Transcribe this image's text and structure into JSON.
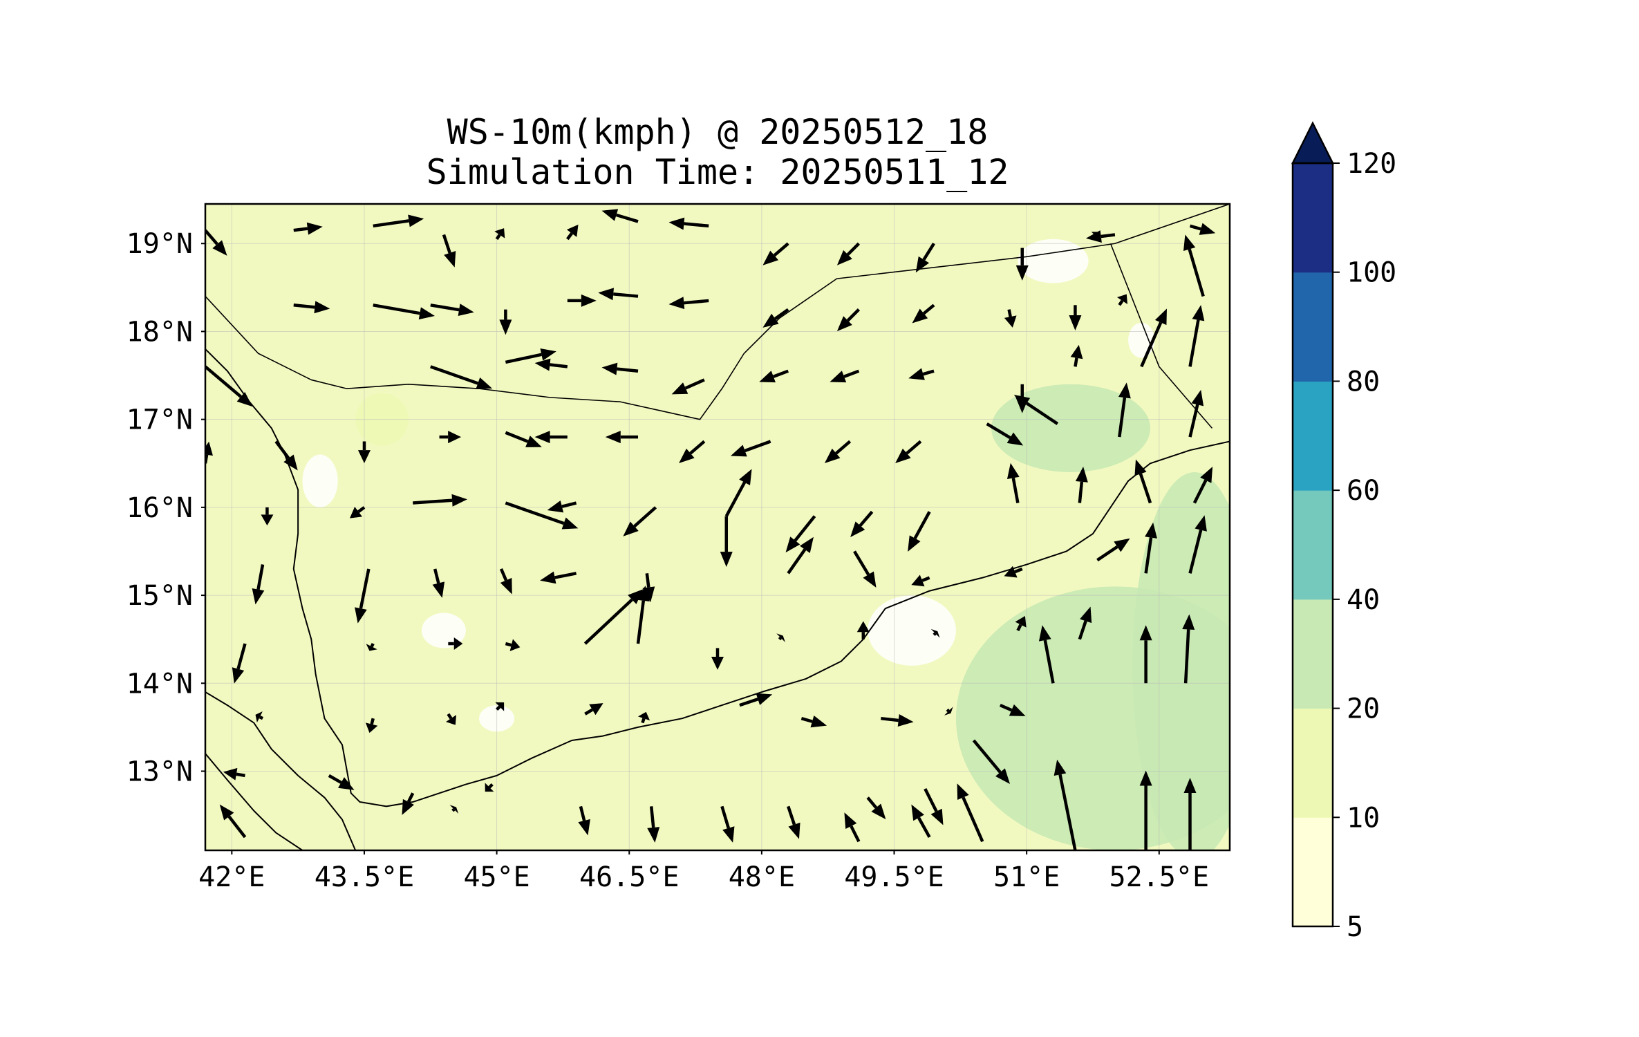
{
  "title": {
    "line1": "WS-10m(kmph) @ 20250512_18",
    "line2": "Simulation Time: 20250511_12"
  },
  "map": {
    "lon_range": [
      41.7,
      53.3
    ],
    "lat_range": [
      12.1,
      19.45
    ],
    "lon_ticks": [
      {
        "value": 42.0,
        "label": "42°E"
      },
      {
        "value": 43.5,
        "label": "43.5°E"
      },
      {
        "value": 45.0,
        "label": "45°E"
      },
      {
        "value": 46.5,
        "label": "46.5°E"
      },
      {
        "value": 48.0,
        "label": "48°E"
      },
      {
        "value": 49.5,
        "label": "49.5°E"
      },
      {
        "value": 51.0,
        "label": "51°E"
      },
      {
        "value": 52.5,
        "label": "52.5°E"
      }
    ],
    "lat_ticks": [
      {
        "value": 19,
        "label": "19°N"
      },
      {
        "value": 18,
        "label": "18°N"
      },
      {
        "value": 17,
        "label": "17°N"
      },
      {
        "value": 16,
        "label": "16°N"
      },
      {
        "value": 15,
        "label": "15°N"
      },
      {
        "value": 14,
        "label": "14°N"
      },
      {
        "value": 13,
        "label": "13°N"
      }
    ],
    "background_color": "#f2f9c0",
    "coastline": [
      [
        41.7,
        17.8
      ],
      [
        41.95,
        17.55
      ],
      [
        42.2,
        17.2
      ],
      [
        42.45,
        16.9
      ],
      [
        42.6,
        16.6
      ],
      [
        42.75,
        16.2
      ],
      [
        42.75,
        15.7
      ],
      [
        42.7,
        15.3
      ],
      [
        42.8,
        14.85
      ],
      [
        42.9,
        14.5
      ],
      [
        42.95,
        14.1
      ],
      [
        43.05,
        13.6
      ],
      [
        43.25,
        13.3
      ],
      [
        43.35,
        12.75
      ],
      [
        43.45,
        12.65
      ],
      [
        43.75,
        12.6
      ],
      [
        44.05,
        12.65
      ],
      [
        44.35,
        12.75
      ],
      [
        44.65,
        12.85
      ],
      [
        45.0,
        12.95
      ],
      [
        45.4,
        13.15
      ],
      [
        45.85,
        13.35
      ],
      [
        46.2,
        13.4
      ],
      [
        46.6,
        13.5
      ],
      [
        47.1,
        13.6
      ],
      [
        47.55,
        13.75
      ],
      [
        48.0,
        13.9
      ],
      [
        48.5,
        14.05
      ],
      [
        48.9,
        14.25
      ],
      [
        49.15,
        14.5
      ],
      [
        49.4,
        14.85
      ],
      [
        49.9,
        15.05
      ],
      [
        50.5,
        15.2
      ],
      [
        51.0,
        15.35
      ],
      [
        51.45,
        15.5
      ],
      [
        51.75,
        15.7
      ],
      [
        51.95,
        16.0
      ],
      [
        52.15,
        16.3
      ],
      [
        52.4,
        16.5
      ],
      [
        52.85,
        16.65
      ],
      [
        53.3,
        16.75
      ]
    ],
    "red_sea_coast": [
      [
        41.7,
        13.9
      ],
      [
        41.95,
        13.75
      ],
      [
        42.25,
        13.55
      ],
      [
        42.45,
        13.25
      ],
      [
        42.75,
        12.95
      ],
      [
        43.05,
        12.7
      ],
      [
        43.25,
        12.45
      ],
      [
        43.4,
        12.1
      ]
    ],
    "horn_coast": [
      [
        41.7,
        13.2
      ],
      [
        41.95,
        12.9
      ],
      [
        42.25,
        12.55
      ],
      [
        42.5,
        12.3
      ],
      [
        42.8,
        12.1
      ]
    ],
    "borders": [
      [
        [
          41.7,
          18.4
        ],
        [
          42.3,
          17.75
        ],
        [
          42.9,
          17.45
        ],
        [
          43.3,
          17.35
        ],
        [
          44.0,
          17.4
        ],
        [
          44.8,
          17.35
        ],
        [
          45.6,
          17.25
        ],
        [
          46.4,
          17.2
        ],
        [
          46.85,
          17.1
        ],
        [
          47.3,
          17.0
        ],
        [
          47.55,
          17.35
        ],
        [
          47.8,
          17.75
        ],
        [
          48.2,
          18.15
        ],
        [
          48.85,
          18.6
        ],
        [
          51.0,
          18.85
        ],
        [
          52.0,
          19.0
        ],
        [
          53.3,
          19.45
        ]
      ],
      [
        [
          51.95,
          19.0
        ],
        [
          52.5,
          17.6
        ],
        [
          53.1,
          16.9
        ]
      ]
    ],
    "land_wind_shade": [
      {
        "lon": 52.0,
        "lat": 13.6,
        "rx": 1.8,
        "ry": 1.5,
        "level": "20-40"
      },
      {
        "lon": 52.9,
        "lat": 14.2,
        "rx": 0.7,
        "ry": 2.2,
        "level": "20-40"
      },
      {
        "lon": 51.5,
        "lat": 16.9,
        "rx": 0.9,
        "ry": 0.5,
        "level": "20-40"
      },
      {
        "lon": 43.7,
        "lat": 17.0,
        "rx": 0.3,
        "ry": 0.3,
        "level": "10-20"
      },
      {
        "lon": 43.0,
        "lat": 16.3,
        "rx": 0.2,
        "ry": 0.3,
        "level": "5-10"
      },
      {
        "lon": 49.7,
        "lat": 14.6,
        "rx": 0.5,
        "ry": 0.4,
        "level": "5-10"
      },
      {
        "lon": 44.4,
        "lat": 14.6,
        "rx": 0.25,
        "ry": 0.2,
        "level": "5-10"
      },
      {
        "lon": 45.0,
        "lat": 13.6,
        "rx": 0.2,
        "ry": 0.15,
        "level": "5-10"
      },
      {
        "lon": 51.3,
        "lat": 18.8,
        "rx": 0.4,
        "ry": 0.25,
        "level": "5-10"
      },
      {
        "lon": 52.3,
        "lat": 17.9,
        "rx": 0.15,
        "ry": 0.2,
        "level": "5-10"
      }
    ],
    "wind_vectors": [
      {
        "lon": 41.7,
        "lat": 19.15,
        "u": 0.3,
        "v": -0.35
      },
      {
        "lon": 42.7,
        "lat": 19.15,
        "u": 0.4,
        "v": 0.05
      },
      {
        "lon": 43.6,
        "lat": 19.2,
        "u": 0.7,
        "v": 0.1
      },
      {
        "lon": 44.4,
        "lat": 19.1,
        "u": 0.15,
        "v": -0.45
      },
      {
        "lon": 45.0,
        "lat": 19.05,
        "u": 0.1,
        "v": 0.15
      },
      {
        "lon": 45.8,
        "lat": 19.05,
        "u": 0.15,
        "v": 0.2
      },
      {
        "lon": 46.6,
        "lat": 19.25,
        "u": -0.5,
        "v": 0.15
      },
      {
        "lon": 47.4,
        "lat": 19.2,
        "u": -0.55,
        "v": 0.05
      },
      {
        "lon": 48.3,
        "lat": 19.0,
        "u": -0.35,
        "v": -0.3
      },
      {
        "lon": 49.1,
        "lat": 19.0,
        "u": -0.3,
        "v": -0.3
      },
      {
        "lon": 49.95,
        "lat": 19.0,
        "u": -0.25,
        "v": -0.4
      },
      {
        "lon": 50.95,
        "lat": 18.95,
        "u": 0.0,
        "v": -0.45
      },
      {
        "lon": 51.75,
        "lat": 19.05,
        "u": 0.1,
        "v": 0.1
      },
      {
        "lon": 52.0,
        "lat": 19.1,
        "u": -0.4,
        "v": -0.05
      },
      {
        "lon": 52.85,
        "lat": 19.2,
        "u": 0.35,
        "v": -0.1
      },
      {
        "lon": 53.0,
        "lat": 18.4,
        "u": -0.25,
        "v": 0.85
      },
      {
        "lon": 42.7,
        "lat": 18.3,
        "u": 0.5,
        "v": -0.05
      },
      {
        "lon": 43.6,
        "lat": 18.3,
        "u": 0.85,
        "v": -0.15
      },
      {
        "lon": 44.25,
        "lat": 18.3,
        "u": 0.6,
        "v": -0.1
      },
      {
        "lon": 45.1,
        "lat": 18.25,
        "u": 0.0,
        "v": -0.35
      },
      {
        "lon": 45.8,
        "lat": 18.35,
        "u": 0.4,
        "v": 0.0
      },
      {
        "lon": 46.6,
        "lat": 18.4,
        "u": -0.55,
        "v": 0.05
      },
      {
        "lon": 47.4,
        "lat": 18.35,
        "u": -0.55,
        "v": -0.05
      },
      {
        "lon": 48.3,
        "lat": 18.25,
        "u": -0.35,
        "v": -0.25
      },
      {
        "lon": 49.1,
        "lat": 18.25,
        "u": -0.3,
        "v": -0.3
      },
      {
        "lon": 49.95,
        "lat": 18.3,
        "u": -0.3,
        "v": -0.25
      },
      {
        "lon": 50.8,
        "lat": 18.25,
        "u": 0.05,
        "v": -0.25
      },
      {
        "lon": 51.55,
        "lat": 18.3,
        "u": 0.0,
        "v": -0.35
      },
      {
        "lon": 52.05,
        "lat": 18.3,
        "u": 0.1,
        "v": 0.15
      },
      {
        "lon": 52.3,
        "lat": 17.6,
        "u": 0.35,
        "v": 0.8
      },
      {
        "lon": 52.85,
        "lat": 17.6,
        "u": 0.15,
        "v": 0.85
      },
      {
        "lon": 44.25,
        "lat": 17.6,
        "u": 0.85,
        "v": -0.3
      },
      {
        "lon": 45.1,
        "lat": 17.65,
        "u": 0.7,
        "v": 0.15
      },
      {
        "lon": 45.8,
        "lat": 17.6,
        "u": -0.45,
        "v": 0.05
      },
      {
        "lon": 46.6,
        "lat": 17.55,
        "u": -0.5,
        "v": 0.05
      },
      {
        "lon": 47.35,
        "lat": 17.45,
        "u": -0.45,
        "v": -0.2
      },
      {
        "lon": 48.3,
        "lat": 17.55,
        "u": -0.4,
        "v": -0.15
      },
      {
        "lon": 49.1,
        "lat": 17.55,
        "u": -0.4,
        "v": -0.15
      },
      {
        "lon": 49.95,
        "lat": 17.55,
        "u": -0.35,
        "v": -0.1
      },
      {
        "lon": 50.95,
        "lat": 17.4,
        "u": 0.0,
        "v": -0.4
      },
      {
        "lon": 51.55,
        "lat": 17.6,
        "u": 0.05,
        "v": 0.3
      },
      {
        "lon": 52.05,
        "lat": 16.8,
        "u": 0.1,
        "v": 0.75
      },
      {
        "lon": 52.85,
        "lat": 16.8,
        "u": 0.15,
        "v": 0.65
      },
      {
        "lon": 41.7,
        "lat": 17.6,
        "u": 0.65,
        "v": -0.55
      },
      {
        "lon": 42.5,
        "lat": 16.75,
        "u": 0.3,
        "v": -0.4
      },
      {
        "lon": 43.5,
        "lat": 16.75,
        "u": 0.0,
        "v": -0.3
      },
      {
        "lon": 44.35,
        "lat": 16.8,
        "u": 0.3,
        "v": 0.0
      },
      {
        "lon": 45.1,
        "lat": 16.85,
        "u": 0.5,
        "v": -0.2
      },
      {
        "lon": 45.8,
        "lat": 16.8,
        "u": -0.45,
        "v": 0.0
      },
      {
        "lon": 46.6,
        "lat": 16.8,
        "u": -0.45,
        "v": 0.0
      },
      {
        "lon": 47.35,
        "lat": 16.75,
        "u": -0.35,
        "v": -0.3
      },
      {
        "lon": 48.1,
        "lat": 16.75,
        "u": -0.55,
        "v": -0.2
      },
      {
        "lon": 49.0,
        "lat": 16.75,
        "u": -0.35,
        "v": -0.3
      },
      {
        "lon": 49.8,
        "lat": 16.75,
        "u": -0.35,
        "v": -0.3
      },
      {
        "lon": 50.55,
        "lat": 16.95,
        "u": 0.5,
        "v": -0.3
      },
      {
        "lon": 51.35,
        "lat": 16.95,
        "u": -0.6,
        "v": 0.4
      },
      {
        "lon": 50.9,
        "lat": 16.05,
        "u": -0.1,
        "v": 0.55
      },
      {
        "lon": 51.6,
        "lat": 16.05,
        "u": 0.05,
        "v": 0.5
      },
      {
        "lon": 52.4,
        "lat": 16.05,
        "u": -0.2,
        "v": 0.6
      },
      {
        "lon": 52.9,
        "lat": 16.05,
        "u": 0.25,
        "v": 0.5
      },
      {
        "lon": 41.7,
        "lat": 16.5,
        "u": 0.05,
        "v": 0.3
      },
      {
        "lon": 42.4,
        "lat": 16.0,
        "u": 0.0,
        "v": -0.25
      },
      {
        "lon": 43.5,
        "lat": 16.0,
        "u": -0.2,
        "v": -0.15
      },
      {
        "lon": 44.05,
        "lat": 16.05,
        "u": 0.75,
        "v": 0.05
      },
      {
        "lon": 45.1,
        "lat": 16.05,
        "u": 1.0,
        "v": -0.35
      },
      {
        "lon": 45.9,
        "lat": 16.05,
        "u": -0.4,
        "v": -0.1
      },
      {
        "lon": 46.8,
        "lat": 16.0,
        "u": -0.45,
        "v": -0.4
      },
      {
        "lon": 47.6,
        "lat": 15.9,
        "u": 0.35,
        "v": 0.65
      },
      {
        "lon": 47.6,
        "lat": 15.9,
        "u": 0.0,
        "v": -0.7
      },
      {
        "lon": 48.6,
        "lat": 15.9,
        "u": -0.4,
        "v": -0.5
      },
      {
        "lon": 49.25,
        "lat": 15.95,
        "u": -0.3,
        "v": -0.35
      },
      {
        "lon": 49.9,
        "lat": 15.95,
        "u": -0.3,
        "v": -0.55
      },
      {
        "lon": 42.35,
        "lat": 15.35,
        "u": -0.1,
        "v": -0.55
      },
      {
        "lon": 43.55,
        "lat": 15.3,
        "u": -0.15,
        "v": -0.75
      },
      {
        "lon": 44.3,
        "lat": 15.3,
        "u": 0.1,
        "v": -0.4
      },
      {
        "lon": 45.05,
        "lat": 15.3,
        "u": 0.15,
        "v": -0.35
      },
      {
        "lon": 45.9,
        "lat": 15.25,
        "u": -0.5,
        "v": -0.1
      },
      {
        "lon": 46.7,
        "lat": 15.25,
        "u": 0.05,
        "v": -0.4
      },
      {
        "lon": 48.3,
        "lat": 15.25,
        "u": 0.35,
        "v": 0.5
      },
      {
        "lon": 49.05,
        "lat": 15.5,
        "u": 0.3,
        "v": -0.5
      },
      {
        "lon": 49.9,
        "lat": 15.2,
        "u": -0.25,
        "v": -0.1
      },
      {
        "lon": 50.95,
        "lat": 15.3,
        "u": -0.25,
        "v": -0.1
      },
      {
        "lon": 51.8,
        "lat": 15.4,
        "u": 0.45,
        "v": 0.3
      },
      {
        "lon": 52.35,
        "lat": 15.25,
        "u": 0.1,
        "v": 0.7
      },
      {
        "lon": 52.85,
        "lat": 15.25,
        "u": 0.2,
        "v": 0.8
      },
      {
        "lon": 42.15,
        "lat": 14.45,
        "u": -0.15,
        "v": -0.55
      },
      {
        "lon": 43.6,
        "lat": 14.45,
        "u": -0.05,
        "v": -0.1
      },
      {
        "lon": 44.45,
        "lat": 14.45,
        "u": 0.2,
        "v": 0.0
      },
      {
        "lon": 45.1,
        "lat": 14.45,
        "u": 0.2,
        "v": -0.05
      },
      {
        "lon": 46.0,
        "lat": 14.45,
        "u": 0.8,
        "v": 0.75
      },
      {
        "lon": 46.6,
        "lat": 14.45,
        "u": 0.1,
        "v": 0.8
      },
      {
        "lon": 47.5,
        "lat": 14.4,
        "u": 0.0,
        "v": -0.3
      },
      {
        "lon": 48.2,
        "lat": 14.5,
        "u": 0.05,
        "v": 0.05
      },
      {
        "lon": 49.15,
        "lat": 14.5,
        "u": 0.0,
        "v": 0.25
      },
      {
        "lon": 49.95,
        "lat": 14.55,
        "u": 0.05,
        "v": 0.05
      },
      {
        "lon": 50.9,
        "lat": 14.6,
        "u": 0.1,
        "v": 0.2
      },
      {
        "lon": 51.6,
        "lat": 14.5,
        "u": 0.15,
        "v": 0.45
      },
      {
        "lon": 52.35,
        "lat": 14.0,
        "u": 0.0,
        "v": 0.8
      },
      {
        "lon": 52.8,
        "lat": 14.0,
        "u": 0.05,
        "v": 0.95
      },
      {
        "lon": 51.3,
        "lat": 14.0,
        "u": -0.15,
        "v": 0.8
      },
      {
        "lon": 42.35,
        "lat": 13.6,
        "u": -0.1,
        "v": 0.05
      },
      {
        "lon": 43.6,
        "lat": 13.6,
        "u": -0.05,
        "v": -0.2
      },
      {
        "lon": 44.45,
        "lat": 13.65,
        "u": 0.1,
        "v": -0.15
      },
      {
        "lon": 45.0,
        "lat": 13.7,
        "u": 0.1,
        "v": 0.1
      },
      {
        "lon": 46.0,
        "lat": 13.65,
        "u": 0.25,
        "v": 0.15
      },
      {
        "lon": 46.65,
        "lat": 13.55,
        "u": 0.05,
        "v": 0.15
      },
      {
        "lon": 47.75,
        "lat": 13.75,
        "u": 0.45,
        "v": 0.15
      },
      {
        "lon": 48.45,
        "lat": 13.6,
        "u": 0.35,
        "v": -0.1
      },
      {
        "lon": 49.35,
        "lat": 13.6,
        "u": 0.45,
        "v": -0.05
      },
      {
        "lon": 50.1,
        "lat": 13.7,
        "u": 0.05,
        "v": -0.05
      },
      {
        "lon": 50.7,
        "lat": 13.75,
        "u": 0.35,
        "v": -0.15
      },
      {
        "lon": 42.15,
        "lat": 12.95,
        "u": -0.3,
        "v": 0.05
      },
      {
        "lon": 43.1,
        "lat": 12.95,
        "u": 0.35,
        "v": -0.2
      },
      {
        "lon": 44.05,
        "lat": 12.75,
        "u": -0.15,
        "v": -0.3
      },
      {
        "lon": 44.95,
        "lat": 12.85,
        "u": -0.1,
        "v": -0.1
      },
      {
        "lon": 45.95,
        "lat": 12.6,
        "u": 0.1,
        "v": -0.4
      },
      {
        "lon": 46.75,
        "lat": 12.6,
        "u": 0.05,
        "v": -0.5
      },
      {
        "lon": 47.55,
        "lat": 12.6,
        "u": 0.15,
        "v": -0.5
      },
      {
        "lon": 48.3,
        "lat": 12.6,
        "u": 0.15,
        "v": -0.45
      },
      {
        "lon": 49.2,
        "lat": 12.7,
        "u": 0.25,
        "v": -0.3
      },
      {
        "lon": 49.85,
        "lat": 12.8,
        "u": 0.25,
        "v": -0.5
      },
      {
        "lon": 50.4,
        "lat": 13.35,
        "u": 0.5,
        "v": -0.6
      },
      {
        "lon": 49.9,
        "lat": 12.25,
        "u": -0.25,
        "v": 0.45
      },
      {
        "lon": 50.5,
        "lat": 12.2,
        "u": -0.35,
        "v": 0.8
      },
      {
        "lon": 49.1,
        "lat": 12.2,
        "u": -0.2,
        "v": 0.4
      },
      {
        "lon": 51.55,
        "lat": 12.1,
        "u": -0.25,
        "v": 1.25
      },
      {
        "lon": 52.35,
        "lat": 12.1,
        "u": 0.0,
        "v": 1.1
      },
      {
        "lon": 52.85,
        "lat": 12.1,
        "u": 0.0,
        "v": 1.0
      },
      {
        "lon": 42.15,
        "lat": 12.25,
        "u": -0.35,
        "v": 0.45
      },
      {
        "lon": 44.5,
        "lat": 12.55,
        "u": 0.05,
        "v": 0.05
      }
    ]
  },
  "colorbar": {
    "ticks": [
      "120",
      "100",
      "80",
      "60",
      "40",
      "20",
      "10",
      "5"
    ],
    "levels": [
      {
        "from": 5,
        "to": 10,
        "color": "#ffffd9"
      },
      {
        "from": 10,
        "to": 20,
        "color": "#eef8b5"
      },
      {
        "from": 20,
        "to": 40,
        "color": "#c8e9b4"
      },
      {
        "from": 40,
        "to": 60,
        "color": "#74c9bc"
      },
      {
        "from": 60,
        "to": 80,
        "color": "#2aa2c2"
      },
      {
        "from": 80,
        "to": 100,
        "color": "#2165ab"
      },
      {
        "from": 100,
        "to": 120,
        "color": "#1c2e84"
      }
    ],
    "extend_color": "#081d58"
  }
}
